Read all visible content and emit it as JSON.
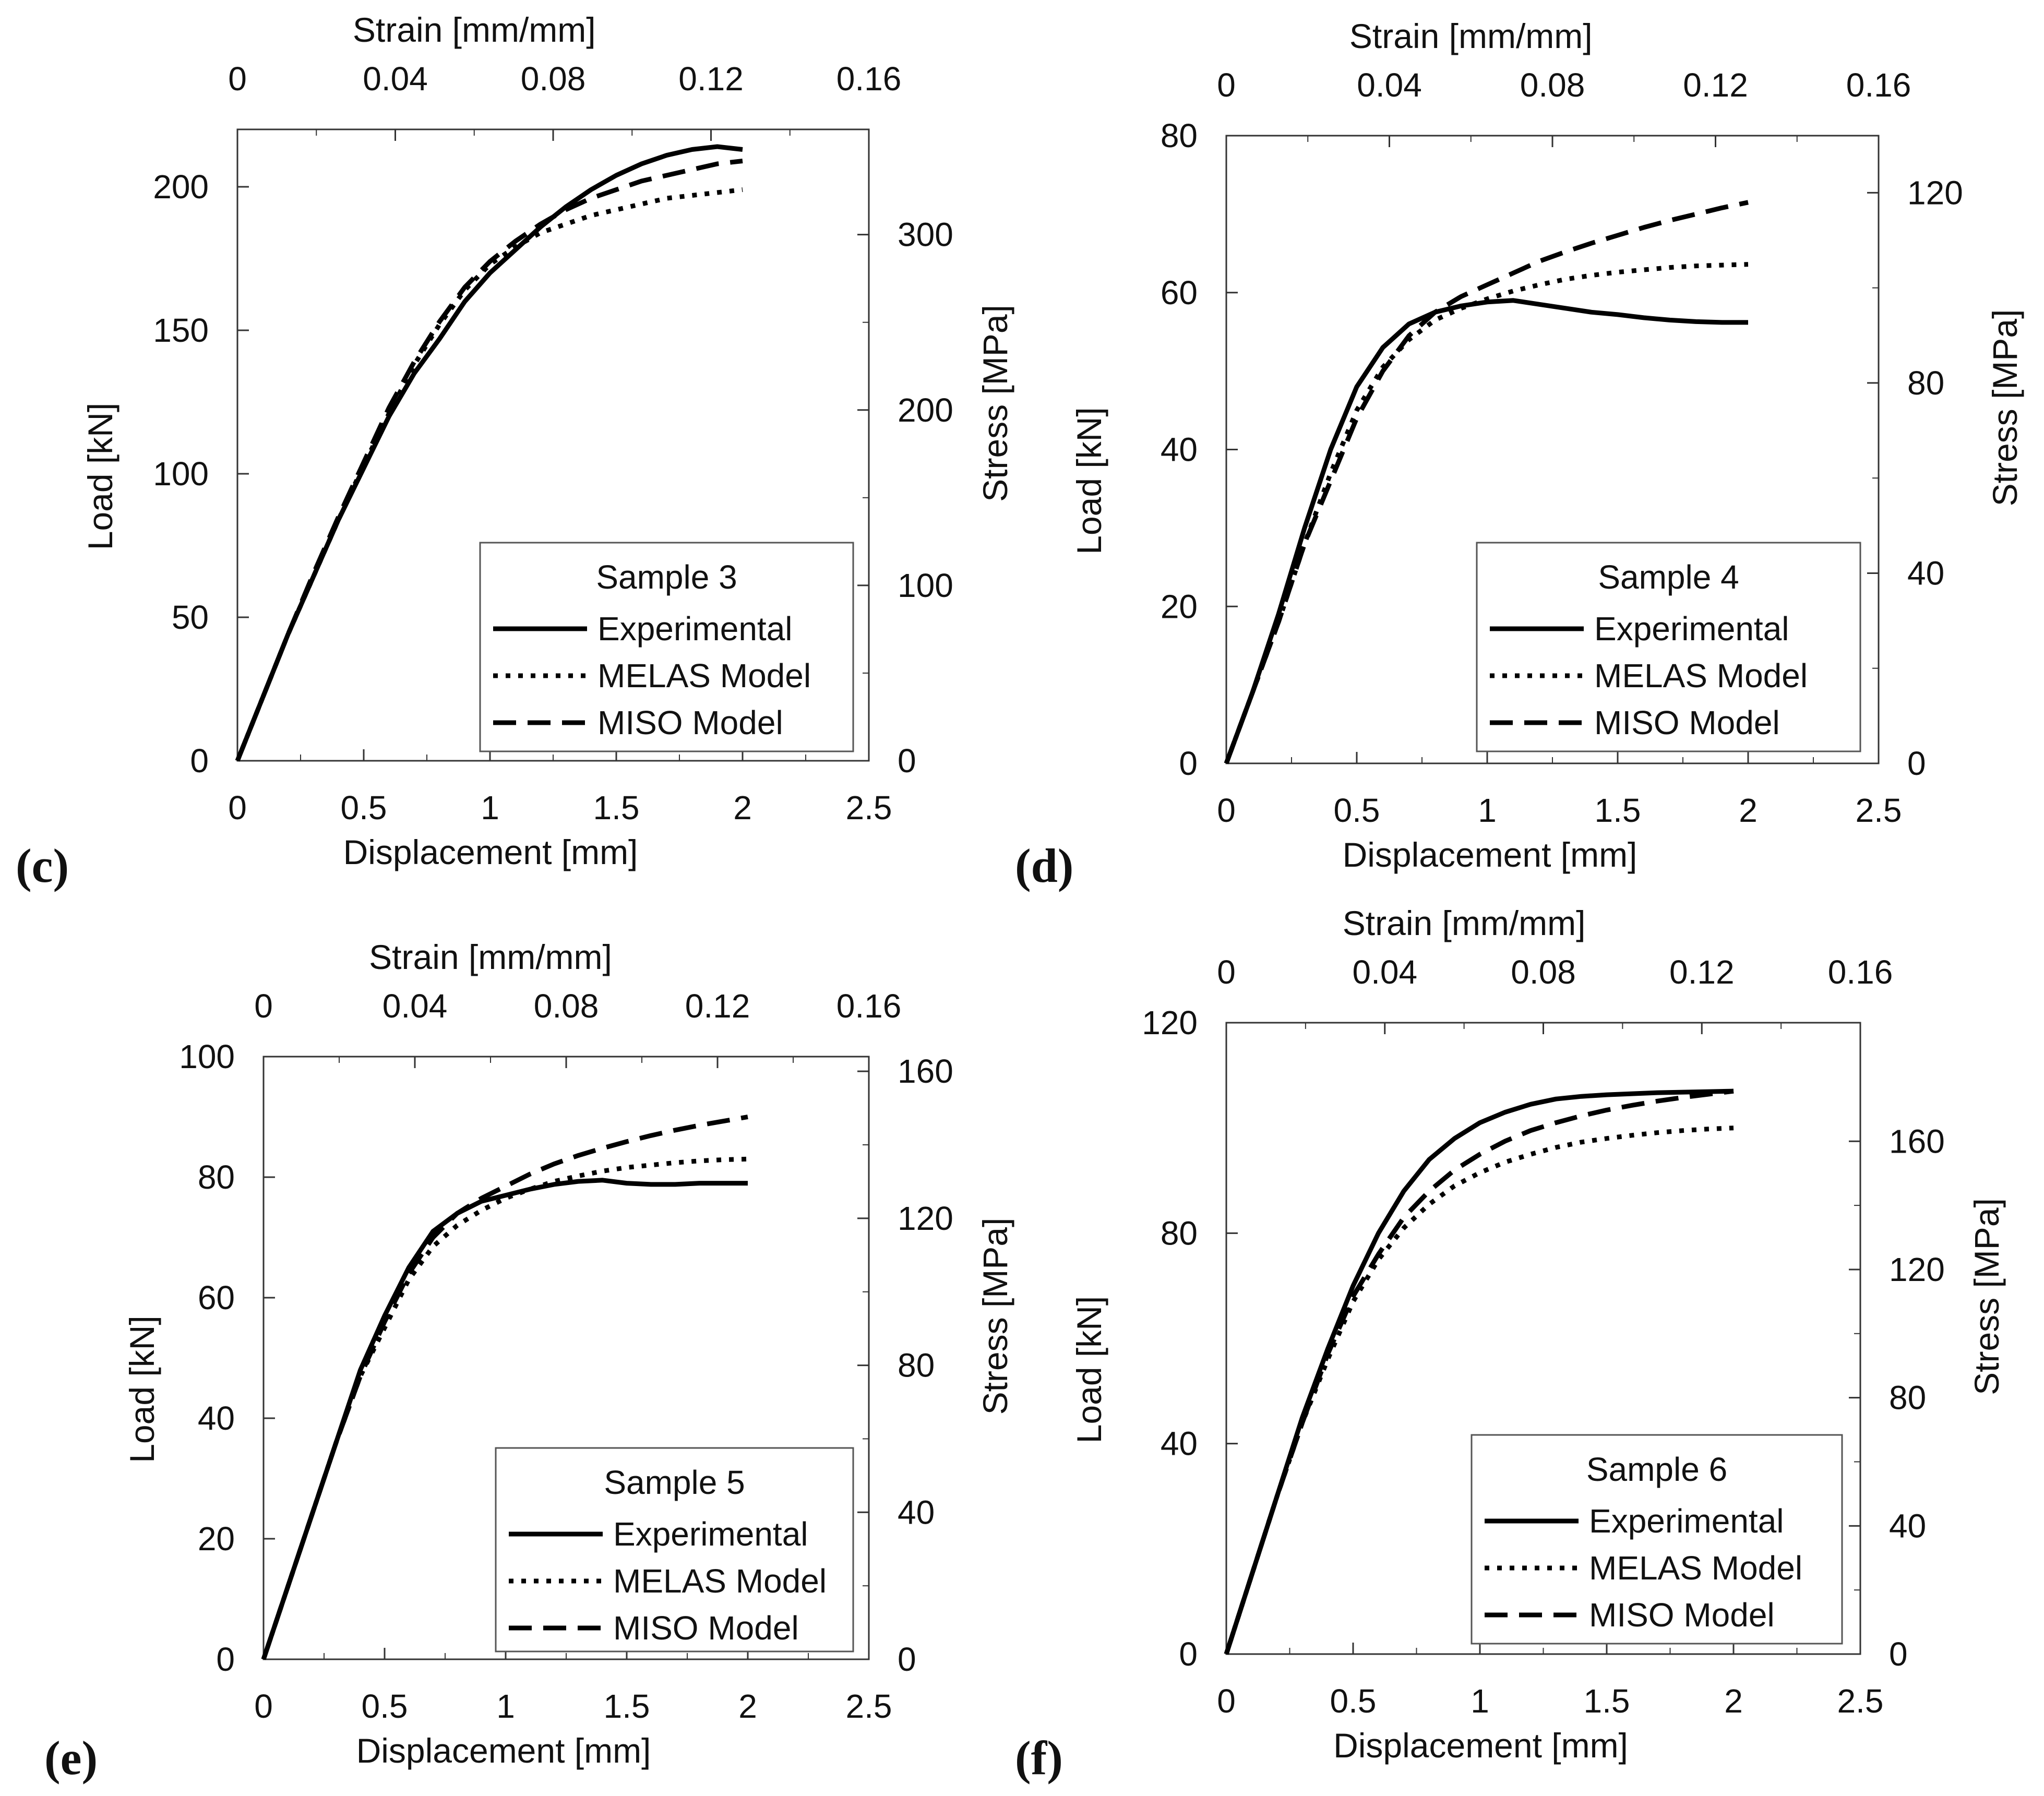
{
  "chart_data": [
    {
      "type": "line",
      "panel_label": "(c)",
      "legend_title": "Sample 3",
      "xlabel": "Displacement [mm]",
      "ylabel": "Load [kN]",
      "x2label": "Strain [mm/mm]",
      "y2label": "Stress [MPa]",
      "xlim": [
        0,
        2.5
      ],
      "ylim": [
        0,
        220
      ],
      "x2lim": [
        0,
        0.16
      ],
      "y2lim": [
        0,
        360
      ],
      "xticks": [
        0,
        0.5,
        1,
        1.5,
        2,
        2.5
      ],
      "xtick_labels": [
        "0",
        "0.5",
        "1",
        "1.5",
        "2",
        "2.5"
      ],
      "yticks": [
        0,
        50,
        100,
        150,
        200
      ],
      "ytick_labels": [
        "0",
        "50",
        "100",
        "150",
        "200"
      ],
      "x2ticks": [
        0,
        0.04,
        0.08,
        0.12,
        0.16
      ],
      "x2tick_labels": [
        "0",
        "0.04",
        "0.08",
        "0.12",
        "0.16"
      ],
      "y2ticks": [
        0,
        100,
        200,
        300
      ],
      "y2tick_labels": [
        "0",
        "100",
        "200",
        "300"
      ],
      "legend_position": "bottom-right",
      "series": [
        {
          "name": "Experimental",
          "style": "solid",
          "x": [
            0,
            0.1,
            0.2,
            0.3,
            0.4,
            0.5,
            0.6,
            0.7,
            0.8,
            0.9,
            1.0,
            1.1,
            1.2,
            1.3,
            1.4,
            1.5,
            1.6,
            1.7,
            1.8,
            1.9,
            2.0
          ],
          "y": [
            0,
            22,
            44,
            64,
            84,
            102,
            120,
            135,
            147,
            160,
            170,
            178,
            186,
            193,
            199,
            204,
            208,
            211,
            213,
            214,
            213
          ]
        },
        {
          "name": "MELAS Model",
          "style": "dotted",
          "x": [
            0,
            0.1,
            0.2,
            0.3,
            0.4,
            0.5,
            0.6,
            0.7,
            0.8,
            0.9,
            1.0,
            1.1,
            1.2,
            1.3,
            1.4,
            1.5,
            1.6,
            1.7,
            1.8,
            1.9,
            2.0
          ],
          "y": [
            0,
            22,
            44,
            64,
            84,
            103,
            121,
            138,
            152,
            164,
            173,
            179,
            184,
            187,
            190,
            192,
            194,
            196,
            197,
            198,
            199
          ]
        },
        {
          "name": "MISO Model",
          "style": "dashed",
          "x": [
            0,
            0.1,
            0.2,
            0.3,
            0.4,
            0.5,
            0.6,
            0.7,
            0.8,
            0.9,
            1.0,
            1.1,
            1.2,
            1.3,
            1.4,
            1.5,
            1.6,
            1.7,
            1.8,
            1.9,
            2.0
          ],
          "y": [
            0,
            22,
            44,
            65,
            85,
            104,
            123,
            139,
            153,
            165,
            174,
            181,
            187,
            192,
            196,
            199,
            202,
            204,
            206,
            208,
            209
          ]
        }
      ]
    },
    {
      "type": "line",
      "panel_label": "(d)",
      "legend_title": "Sample 4",
      "xlabel": "Displacement [mm]",
      "ylabel": "Load [kN]",
      "x2label": "Strain [mm/mm]",
      "y2label": "Stress [MPa]",
      "xlim": [
        0,
        2.5
      ],
      "ylim": [
        0,
        80
      ],
      "x2lim": [
        0,
        0.16
      ],
      "y2lim": [
        0,
        132
      ],
      "xticks": [
        0,
        0.5,
        1,
        1.5,
        2,
        2.5
      ],
      "xtick_labels": [
        "0",
        "0.5",
        "1",
        "1.5",
        "2",
        "2.5"
      ],
      "yticks": [
        0,
        20,
        40,
        60,
        80
      ],
      "ytick_labels": [
        "0",
        "20",
        "40",
        "60",
        "80"
      ],
      "x2ticks": [
        0,
        0.04,
        0.08,
        0.12,
        0.16
      ],
      "x2tick_labels": [
        "0",
        "0.04",
        "0.08",
        "0.12",
        "0.16"
      ],
      "y2ticks": [
        0,
        40,
        80,
        120
      ],
      "y2tick_labels": [
        "0",
        "40",
        "80",
        "120"
      ],
      "legend_position": "bottom-right",
      "series": [
        {
          "name": "Experimental",
          "style": "solid",
          "x": [
            0,
            0.1,
            0.2,
            0.3,
            0.4,
            0.5,
            0.6,
            0.7,
            0.8,
            0.9,
            1.0,
            1.1,
            1.2,
            1.3,
            1.4,
            1.5,
            1.6,
            1.7,
            1.8,
            1.9,
            2.0
          ],
          "y": [
            0,
            9,
            19,
            30,
            40,
            48,
            53,
            56,
            57.5,
            58.3,
            58.8,
            59,
            58.5,
            58,
            57.5,
            57.2,
            56.8,
            56.5,
            56.3,
            56.2,
            56.2
          ]
        },
        {
          "name": "MELAS Model",
          "style": "dotted",
          "x": [
            0,
            0.1,
            0.2,
            0.3,
            0.4,
            0.5,
            0.6,
            0.7,
            0.8,
            0.9,
            1.0,
            1.1,
            1.2,
            1.3,
            1.4,
            1.5,
            1.6,
            1.7,
            1.8,
            1.9,
            2.0
          ],
          "y": [
            0,
            9,
            18,
            28,
            37,
            45,
            50.5,
            54,
            56.5,
            58,
            59.2,
            60.2,
            61,
            61.7,
            62.2,
            62.6,
            62.9,
            63.2,
            63.4,
            63.5,
            63.6
          ]
        },
        {
          "name": "MISO Model",
          "style": "dashed",
          "x": [
            0,
            0.1,
            0.2,
            0.3,
            0.4,
            0.5,
            0.6,
            0.7,
            0.8,
            0.9,
            1.0,
            1.1,
            1.2,
            1.3,
            1.4,
            1.5,
            1.6,
            1.7,
            1.8,
            1.9,
            2.0
          ],
          "y": [
            0,
            9,
            18,
            28,
            36,
            44,
            50,
            54.5,
            57.5,
            59.5,
            61,
            62.5,
            64,
            65.2,
            66.3,
            67.3,
            68.3,
            69.2,
            70,
            70.8,
            71.5
          ]
        }
      ]
    },
    {
      "type": "line",
      "panel_label": "(e)",
      "legend_title": "Sample 5",
      "xlabel": "Displacement [mm]",
      "ylabel": "Load [kN]",
      "x2label": "Strain [mm/mm]",
      "y2label": "Stress [MPa]",
      "xlim": [
        0,
        2.5
      ],
      "ylim": [
        0,
        100
      ],
      "x2lim": [
        0,
        0.16
      ],
      "y2lim": [
        0,
        164
      ],
      "xticks": [
        0,
        0.5,
        1,
        1.5,
        2,
        2.5
      ],
      "xtick_labels": [
        "0",
        "0.5",
        "1",
        "1.5",
        "2",
        "2.5"
      ],
      "yticks": [
        0,
        20,
        40,
        60,
        80,
        100
      ],
      "ytick_labels": [
        "0",
        "20",
        "40",
        "60",
        "80",
        "100"
      ],
      "x2ticks": [
        0,
        0.04,
        0.08,
        0.12,
        0.16
      ],
      "x2tick_labels": [
        "0",
        "0.04",
        "0.08",
        "0.12",
        "0.16"
      ],
      "y2ticks": [
        0,
        40,
        80,
        120,
        160
      ],
      "y2tick_labels": [
        "0",
        "40",
        "80",
        "120",
        "160"
      ],
      "legend_position": "bottom-right",
      "series": [
        {
          "name": "Experimental",
          "style": "solid",
          "x": [
            0,
            0.1,
            0.2,
            0.3,
            0.4,
            0.5,
            0.6,
            0.7,
            0.8,
            0.9,
            1.0,
            1.1,
            1.2,
            1.3,
            1.4,
            1.5,
            1.6,
            1.7,
            1.8,
            1.9,
            2.0
          ],
          "y": [
            0,
            12,
            24,
            36,
            48,
            57,
            65,
            71,
            74,
            76,
            77,
            78,
            78.8,
            79.3,
            79.5,
            79,
            78.8,
            78.8,
            79,
            79,
            79
          ]
        },
        {
          "name": "MELAS Model",
          "style": "dotted",
          "x": [
            0,
            0.1,
            0.2,
            0.3,
            0.4,
            0.5,
            0.6,
            0.7,
            0.8,
            0.9,
            1.0,
            1.1,
            1.2,
            1.3,
            1.4,
            1.5,
            1.6,
            1.7,
            1.8,
            1.9,
            2.0
          ],
          "y": [
            0,
            12,
            24,
            36,
            47,
            55,
            63,
            68.5,
            72,
            74.5,
            76.5,
            78,
            79.3,
            80.2,
            81,
            81.6,
            82,
            82.4,
            82.7,
            82.9,
            83
          ]
        },
        {
          "name": "MISO Model",
          "style": "dashed",
          "x": [
            0,
            0.1,
            0.2,
            0.3,
            0.4,
            0.5,
            0.6,
            0.7,
            0.8,
            0.9,
            1.0,
            1.1,
            1.2,
            1.3,
            1.4,
            1.5,
            1.6,
            1.7,
            1.8,
            1.9,
            2.0
          ],
          "y": [
            0,
            12,
            24,
            36,
            47,
            56,
            64,
            70,
            74,
            76.5,
            78.5,
            80.5,
            82.2,
            83.6,
            84.8,
            85.9,
            86.9,
            87.8,
            88.6,
            89.3,
            90
          ]
        }
      ]
    },
    {
      "type": "line",
      "panel_label": "(f)",
      "legend_title": "Sample 6",
      "xlabel": "Displacement [mm]",
      "ylabel": "Load [kN]",
      "x2label": "Strain [mm/mm]",
      "y2label": "Stress [MPa]",
      "xlim": [
        0,
        2.5
      ],
      "ylim": [
        0,
        120
      ],
      "x2lim": [
        0,
        0.16
      ],
      "y2lim": [
        0,
        197
      ],
      "xticks": [
        0,
        0.5,
        1,
        1.5,
        2,
        2.5
      ],
      "xtick_labels": [
        "0",
        "0.5",
        "1",
        "1.5",
        "2",
        "2.5"
      ],
      "yticks": [
        0,
        40,
        80,
        120
      ],
      "ytick_labels": [
        "0",
        "40",
        "80",
        "120"
      ],
      "x2ticks": [
        0,
        0.04,
        0.08,
        0.12,
        0.16
      ],
      "x2tick_labels": [
        "0",
        "0.04",
        "0.08",
        "0.12",
        "0.16"
      ],
      "y2ticks": [
        0,
        40,
        80,
        120,
        160
      ],
      "y2tick_labels": [
        "0",
        "40",
        "80",
        "120",
        "160"
      ],
      "legend_position": "bottom-right",
      "series": [
        {
          "name": "Experimental",
          "style": "solid",
          "x": [
            0,
            0.1,
            0.2,
            0.3,
            0.4,
            0.5,
            0.6,
            0.7,
            0.8,
            0.9,
            1.0,
            1.1,
            1.2,
            1.3,
            1.4,
            1.5,
            1.6,
            1.7,
            1.8,
            1.9,
            2.0
          ],
          "y": [
            0,
            15,
            30,
            45,
            58,
            70,
            80,
            88,
            94,
            98,
            101,
            103,
            104.5,
            105.5,
            106,
            106.3,
            106.5,
            106.7,
            106.8,
            106.9,
            107
          ]
        },
        {
          "name": "MELAS Model",
          "style": "dotted",
          "x": [
            0,
            0.1,
            0.2,
            0.3,
            0.4,
            0.5,
            0.6,
            0.7,
            0.8,
            0.9,
            1.0,
            1.1,
            1.2,
            1.3,
            1.4,
            1.5,
            1.6,
            1.7,
            1.8,
            1.9,
            2.0
          ],
          "y": [
            0,
            15,
            30,
            44,
            56,
            67,
            75,
            81,
            85.5,
            89,
            91.5,
            93.5,
            95,
            96.3,
            97.3,
            98,
            98.6,
            99.1,
            99.5,
            99.8,
            100
          ]
        },
        {
          "name": "MISO Model",
          "style": "dashed",
          "x": [
            0,
            0.1,
            0.2,
            0.3,
            0.4,
            0.5,
            0.6,
            0.7,
            0.8,
            0.9,
            1.0,
            1.1,
            1.2,
            1.3,
            1.4,
            1.5,
            1.6,
            1.7,
            1.8,
            1.9,
            2.0
          ],
          "y": [
            0,
            15,
            30,
            44,
            57,
            68,
            76,
            83,
            88,
            92,
            95,
            97.5,
            99.5,
            101,
            102.3,
            103.4,
            104.3,
            105.1,
            105.8,
            106.4,
            107
          ]
        }
      ]
    }
  ]
}
